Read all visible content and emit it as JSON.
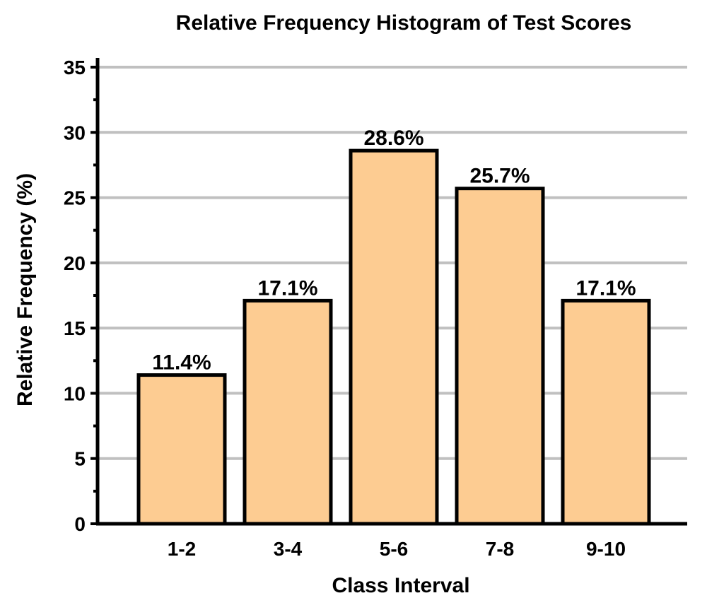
{
  "chart_data": {
    "type": "bar",
    "title": "Relative Frequency Histogram of Test Scores",
    "xlabel": "Class Interval",
    "ylabel": "Relative Frequency (%)",
    "categories": [
      "1-2",
      "3-4",
      "5-6",
      "7-8",
      "9-10"
    ],
    "values": [
      11.4,
      17.1,
      28.6,
      25.7,
      17.1
    ],
    "data_labels": [
      "11.4%",
      "17.1%",
      "28.6%",
      "25.7%",
      "17.1%"
    ],
    "ylim": [
      0,
      35
    ],
    "yticks": [
      0,
      5,
      10,
      15,
      20,
      25,
      30,
      35
    ],
    "ytick_labels": [
      "0",
      "5",
      "10",
      "15",
      "20",
      "25",
      "30",
      "35"
    ],
    "grid": true,
    "legend": "none",
    "colors": {
      "bar_fill": "#FDCC92",
      "bar_stroke": "#000000",
      "grid": "#C0C0C0",
      "axis": "#000000"
    }
  }
}
